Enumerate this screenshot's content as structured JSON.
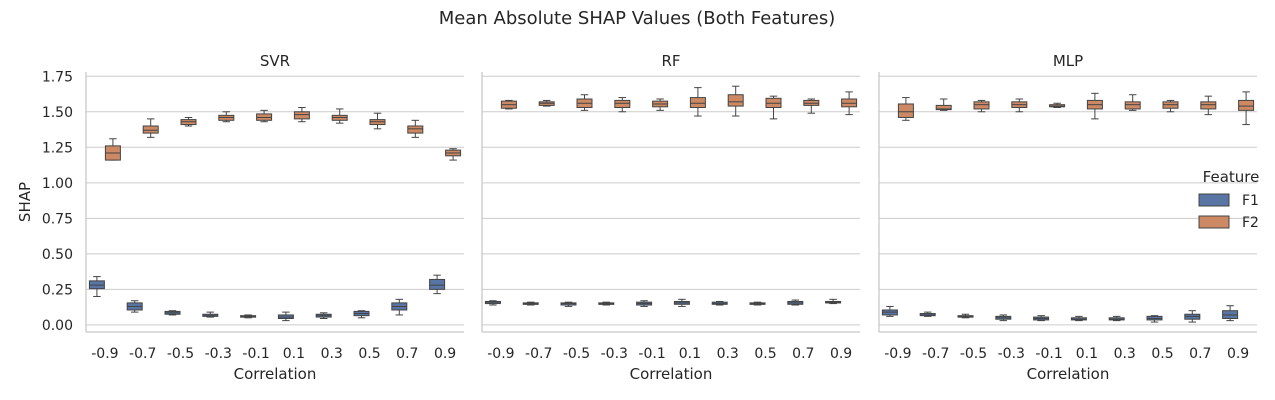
{
  "chart_data": {
    "type": "box",
    "title": "Mean Absolute SHAP Values (Both Features)",
    "xlabel": "Correlation",
    "ylabel": "SHAP",
    "categories": [
      "-0.9",
      "-0.7",
      "-0.5",
      "-0.3",
      "-0.1",
      "0.1",
      "0.3",
      "0.5",
      "0.7",
      "0.9"
    ],
    "ylim": [
      -0.05,
      1.78
    ],
    "yticks": [
      "0.00",
      "0.25",
      "0.50",
      "0.75",
      "1.00",
      "1.25",
      "1.50",
      "1.75"
    ],
    "grid": "horizontal",
    "legend": {
      "title": "Feature",
      "position": "right",
      "entries": [
        "F1",
        "F2"
      ]
    },
    "colors": {
      "F1": "#5875a4",
      "F2": "#cc8963"
    },
    "panels": [
      {
        "title": "SVR",
        "series": [
          {
            "name": "F1",
            "boxes": [
              [
                0.2,
                0.255,
                0.28,
                0.31,
                0.34
              ],
              [
                0.09,
                0.105,
                0.13,
                0.155,
                0.17
              ],
              [
                0.07,
                0.075,
                0.085,
                0.095,
                0.1
              ],
              [
                0.055,
                0.06,
                0.065,
                0.075,
                0.09
              ],
              [
                0.05,
                0.055,
                0.06,
                0.065,
                0.07
              ],
              [
                0.03,
                0.045,
                0.055,
                0.07,
                0.09
              ],
              [
                0.045,
                0.055,
                0.065,
                0.075,
                0.085
              ],
              [
                0.05,
                0.065,
                0.08,
                0.095,
                0.1
              ],
              [
                0.07,
                0.105,
                0.13,
                0.155,
                0.18
              ],
              [
                0.22,
                0.25,
                0.28,
                0.32,
                0.35
              ]
            ]
          },
          {
            "name": "F2",
            "boxes": [
              [
                1.16,
                1.16,
                1.21,
                1.26,
                1.31
              ],
              [
                1.32,
                1.35,
                1.37,
                1.4,
                1.45
              ],
              [
                1.4,
                1.41,
                1.43,
                1.445,
                1.46
              ],
              [
                1.43,
                1.44,
                1.46,
                1.475,
                1.5
              ],
              [
                1.43,
                1.44,
                1.46,
                1.485,
                1.51
              ],
              [
                1.43,
                1.45,
                1.48,
                1.5,
                1.53
              ],
              [
                1.42,
                1.44,
                1.46,
                1.475,
                1.52
              ],
              [
                1.38,
                1.41,
                1.43,
                1.445,
                1.49
              ],
              [
                1.32,
                1.35,
                1.38,
                1.4,
                1.44
              ],
              [
                1.16,
                1.19,
                1.21,
                1.23,
                1.24
              ]
            ]
          }
        ]
      },
      {
        "title": "RF",
        "series": [
          {
            "name": "F1",
            "boxes": [
              [
                0.14,
                0.15,
                0.16,
                0.165,
                0.17
              ],
              [
                0.14,
                0.145,
                0.15,
                0.155,
                0.16
              ],
              [
                0.13,
                0.14,
                0.15,
                0.155,
                0.16
              ],
              [
                0.14,
                0.145,
                0.15,
                0.155,
                0.16
              ],
              [
                0.13,
                0.14,
                0.15,
                0.16,
                0.17
              ],
              [
                0.13,
                0.145,
                0.155,
                0.165,
                0.18
              ],
              [
                0.14,
                0.145,
                0.15,
                0.16,
                0.165
              ],
              [
                0.14,
                0.145,
                0.15,
                0.155,
                0.16
              ],
              [
                0.14,
                0.145,
                0.155,
                0.165,
                0.175
              ],
              [
                0.15,
                0.155,
                0.16,
                0.165,
                0.18
              ]
            ]
          },
          {
            "name": "F2",
            "boxes": [
              [
                1.52,
                1.525,
                1.55,
                1.575,
                1.58
              ],
              [
                1.54,
                1.545,
                1.56,
                1.57,
                1.58
              ],
              [
                1.51,
                1.53,
                1.56,
                1.59,
                1.62
              ],
              [
                1.5,
                1.53,
                1.56,
                1.58,
                1.6
              ],
              [
                1.51,
                1.535,
                1.555,
                1.575,
                1.59
              ],
              [
                1.47,
                1.53,
                1.56,
                1.6,
                1.67
              ],
              [
                1.47,
                1.54,
                1.57,
                1.62,
                1.68
              ],
              [
                1.45,
                1.53,
                1.56,
                1.595,
                1.61
              ],
              [
                1.49,
                1.545,
                1.56,
                1.58,
                1.59
              ],
              [
                1.48,
                1.535,
                1.56,
                1.59,
                1.64
              ]
            ]
          }
        ]
      },
      {
        "title": "MLP",
        "series": [
          {
            "name": "F1",
            "boxes": [
              [
                0.06,
                0.07,
                0.09,
                0.105,
                0.13
              ],
              [
                0.06,
                0.065,
                0.07,
                0.08,
                0.09
              ],
              [
                0.05,
                0.055,
                0.06,
                0.065,
                0.075
              ],
              [
                0.03,
                0.04,
                0.05,
                0.06,
                0.07
              ],
              [
                0.03,
                0.035,
                0.045,
                0.055,
                0.065
              ],
              [
                0.03,
                0.035,
                0.04,
                0.05,
                0.06
              ],
              [
                0.03,
                0.035,
                0.04,
                0.05,
                0.06
              ],
              [
                0.02,
                0.035,
                0.045,
                0.06,
                0.065
              ],
              [
                0.02,
                0.04,
                0.06,
                0.075,
                0.1
              ],
              [
                0.03,
                0.045,
                0.07,
                0.1,
                0.135
              ]
            ]
          },
          {
            "name": "F2",
            "boxes": [
              [
                1.44,
                1.46,
                1.5,
                1.555,
                1.6
              ],
              [
                1.51,
                1.515,
                1.52,
                1.545,
                1.59
              ],
              [
                1.5,
                1.52,
                1.55,
                1.57,
                1.58
              ],
              [
                1.5,
                1.53,
                1.55,
                1.57,
                1.59
              ],
              [
                1.53,
                1.535,
                1.54,
                1.55,
                1.56
              ],
              [
                1.45,
                1.52,
                1.55,
                1.58,
                1.63
              ],
              [
                1.51,
                1.52,
                1.55,
                1.57,
                1.62
              ],
              [
                1.5,
                1.525,
                1.55,
                1.57,
                1.58
              ],
              [
                1.48,
                1.52,
                1.55,
                1.57,
                1.61
              ],
              [
                1.41,
                1.51,
                1.54,
                1.58,
                1.64
              ]
            ]
          }
        ]
      }
    ]
  }
}
